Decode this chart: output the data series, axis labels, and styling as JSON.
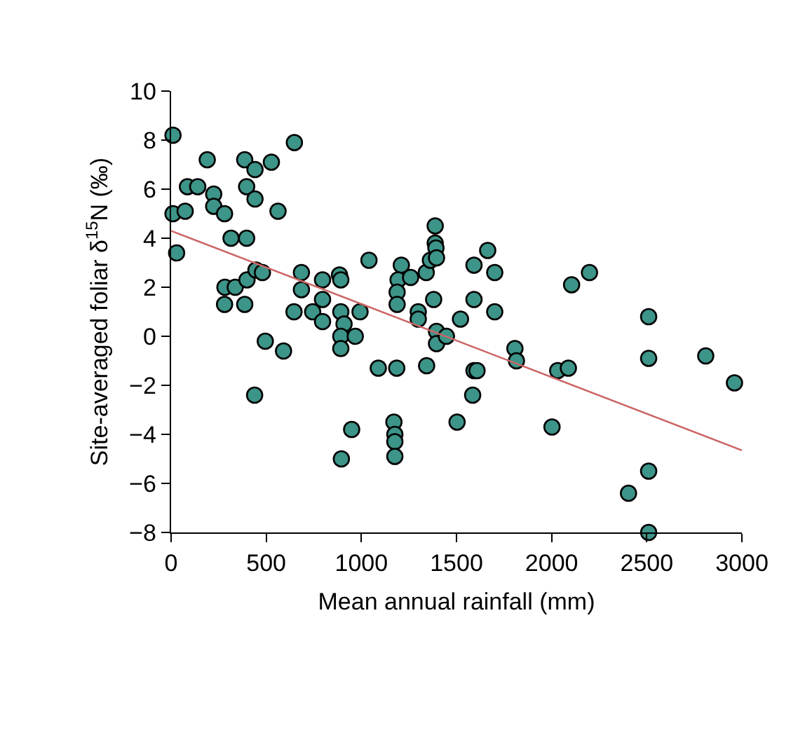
{
  "chart_data": {
    "type": "scatter",
    "xlabel": "Mean annual rainfall (mm)",
    "ylabel": "Site-averaged foliar δ$^{15}$N (‰)",
    "xlim": [
      0,
      3000
    ],
    "ylim": [
      -8,
      10
    ],
    "xticks": [
      0,
      500,
      1000,
      1500,
      2000,
      2500,
      3000
    ],
    "yticks": [
      -8,
      -6,
      -4,
      -2,
      0,
      2,
      4,
      6,
      8,
      10
    ],
    "marker": "circle",
    "series": [
      {
        "color": "#3d9488",
        "x": [
          10,
          10,
          74,
          29,
          86,
          140,
          190,
          224,
          224,
          281,
          315,
          397,
          387,
          441,
          527,
          397,
          441,
          562,
          648,
          283,
          337,
          399,
          446,
          480,
          281,
          387,
          495,
          591,
          439,
          646,
          685,
          685,
          744,
          796,
          796,
          796,
          885,
          892,
          892,
          909,
          892,
          892,
          968,
          993,
          1040,
          949,
          1089,
          1186,
          1171,
          1210,
          1193,
          1188,
          1188,
          1259,
          1299,
          1299,
          1341,
          1363,
          1388,
          1388,
          1392,
          1395,
          1380,
          1395,
          1395,
          1447,
          1343,
          1521,
          1592,
          1592,
          1592,
          1585,
          1503,
          895,
          1176,
          1176,
          1176,
          1664,
          1701,
          1701,
          1807,
          1815,
          1608,
          2032,
          2088,
          2105,
          2199,
          2002,
          2510,
          2510,
          2810,
          2961,
          2510,
          2404,
          2510
        ],
        "values": [
          8.2,
          5.0,
          5.1,
          3.4,
          6.1,
          6.1,
          7.2,
          5.8,
          5.3,
          5.0,
          4.0,
          4.0,
          7.2,
          6.8,
          7.1,
          6.1,
          5.6,
          5.1,
          7.9,
          2.0,
          2.0,
          2.3,
          2.7,
          2.6,
          1.3,
          1.3,
          -0.2,
          -0.6,
          -2.4,
          1.0,
          2.6,
          1.9,
          1.0,
          2.3,
          1.5,
          0.6,
          2.5,
          2.3,
          1.0,
          0.5,
          0.0,
          -0.5,
          0.0,
          1.0,
          3.1,
          -3.8,
          -1.3,
          -1.3,
          -3.5,
          2.9,
          2.3,
          1.8,
          1.3,
          2.4,
          1.0,
          0.7,
          2.6,
          3.1,
          4.5,
          3.8,
          3.6,
          3.2,
          1.5,
          0.2,
          -0.3,
          0.0,
          -1.2,
          0.7,
          2.9,
          1.5,
          -1.4,
          -2.4,
          -3.5,
          -5.0,
          -4.0,
          -4.3,
          -4.9,
          3.5,
          2.6,
          1.0,
          -0.5,
          -1.0,
          -1.4,
          -1.4,
          -1.3,
          2.1,
          2.6,
          -3.7,
          0.8,
          -0.9,
          -0.8,
          -1.9,
          -5.5,
          -6.4,
          -8.0
        ]
      },
      {
        "type": "line",
        "color": "#cc6666",
        "marker": "none",
        "x": [
          0,
          3000
        ],
        "values": [
          4.3,
          -4.65
        ]
      }
    ]
  }
}
